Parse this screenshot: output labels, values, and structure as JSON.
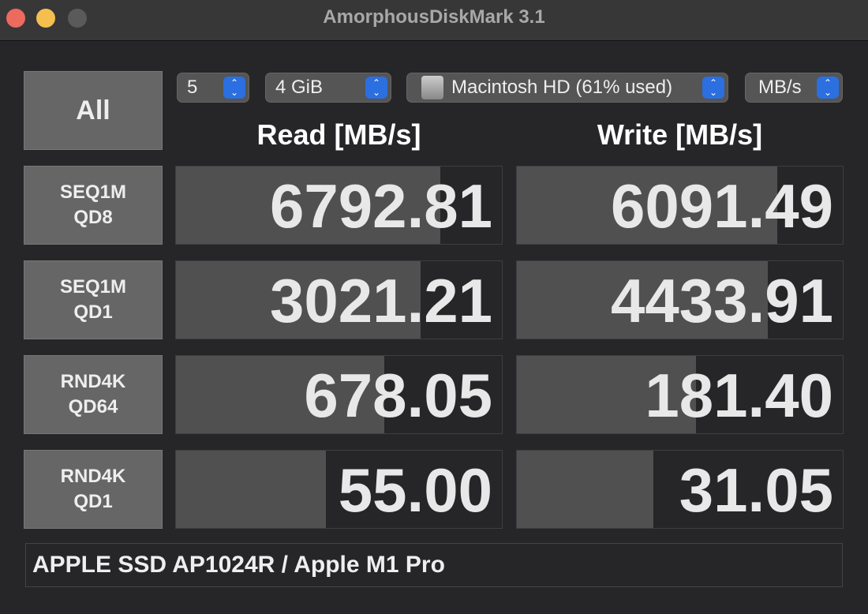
{
  "window": {
    "title": "AmorphousDiskMark 3.1"
  },
  "controls": {
    "all_label": "All",
    "count": "5",
    "size": "4 GiB",
    "drive": "Macintosh HD (61% used)",
    "unit": "MB/s"
  },
  "headers": {
    "read": "Read [MB/s]",
    "write": "Write [MB/s]"
  },
  "rows": [
    {
      "l1": "SEQ1M",
      "l2": "QD8",
      "read": "6792.81",
      "write": "6091.49",
      "read_fill": 0.81,
      "write_fill": 0.8
    },
    {
      "l1": "SEQ1M",
      "l2": "QD1",
      "read": "3021.21",
      "write": "4433.91",
      "read_fill": 0.75,
      "write_fill": 0.77
    },
    {
      "l1": "RND4K",
      "l2": "QD64",
      "read": "678.05",
      "write": "181.40",
      "read_fill": 0.64,
      "write_fill": 0.55
    },
    {
      "l1": "RND4K",
      "l2": "QD1",
      "read": "55.00",
      "write": "31.05",
      "read_fill": 0.46,
      "write_fill": 0.42
    }
  ],
  "footer": "APPLE SSD AP1024R / Apple M1 Pro",
  "colors": {
    "close": "#ed6a5e",
    "minimize": "#f5bf4f",
    "zoom": "#5a5a5a",
    "stepper": "#2b6fe0",
    "bar": "#505051"
  }
}
